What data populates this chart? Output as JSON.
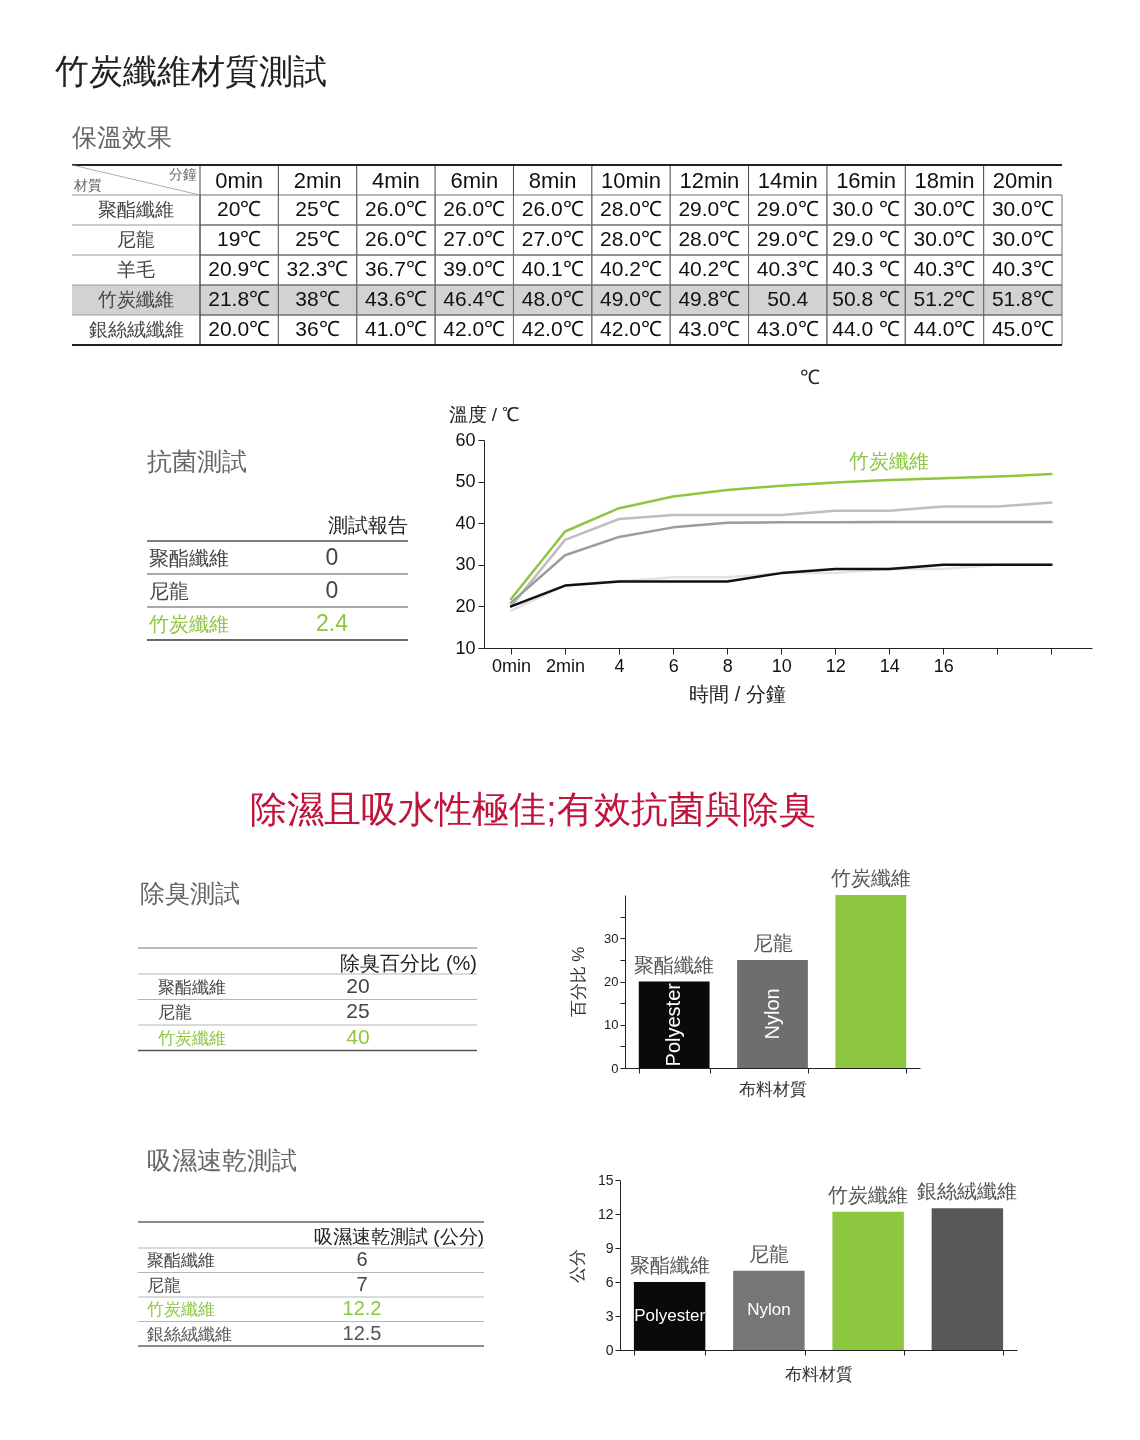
{
  "chart_data": [
    {
      "type": "heatmap",
      "title": "竹炭纖維材質測試",
      "subtitle": "保溫效果",
      "xlabel": "分鐘",
      "ylabel": "材質",
      "categories": [
        "0min",
        "2min",
        "4min",
        "6min",
        "8min",
        "10min",
        "12min",
        "14min",
        "16min",
        "18min",
        "20min"
      ],
      "y_categories": [
        "聚酯纖維",
        "尼龍",
        "羊毛",
        "竹炭纖維",
        "銀絲絨纖維"
      ],
      "cells": [
        [
          20,
          25,
          26,
          26,
          26,
          28,
          29,
          29,
          30,
          30,
          30
        ],
        [
          19,
          25,
          26,
          27,
          27,
          28,
          28,
          29,
          29,
          30,
          30
        ],
        [
          20.9,
          32.3,
          36.7,
          39,
          40.1,
          40.2,
          40.2,
          40.3,
          40.3,
          40.3,
          40.3
        ],
        [
          21.8,
          38,
          43.6,
          46.4,
          48,
          49,
          49.8,
          50.4,
          50.8,
          51.2,
          51.8
        ],
        [
          20,
          36,
          41,
          42,
          42,
          42,
          43,
          43,
          44,
          44,
          45
        ]
      ],
      "cell_labels": [
        [
          "20℃",
          "25℃",
          "26.0℃",
          "26.0℃",
          "26.0℃",
          "28.0℃",
          "29.0℃",
          "29.0℃",
          "30.0 ℃",
          "30.0℃",
          "30.0℃"
        ],
        [
          "19℃",
          "25℃",
          "26.0℃",
          "27.0℃",
          "27.0℃",
          "28.0℃",
          "28.0℃",
          "29.0℃",
          "29.0 ℃",
          "30.0℃",
          "30.0℃"
        ],
        [
          "20.9℃",
          "32.3℃",
          "36.7℃",
          "39.0℃",
          "40.1℃",
          "40.2℃",
          "40.2℃",
          "40.3℃",
          "40.3 ℃",
          "40.3℃",
          "40.3℃"
        ],
        [
          "21.8℃",
          "38℃",
          "43.6℃",
          "46.4℃",
          "48.0℃",
          "49.0℃",
          "49.8℃",
          "50.4",
          "50.8 ℃",
          "51.2℃",
          "51.8℃"
        ],
        [
          "20.0℃",
          "36℃",
          "41.0℃",
          "42.0℃",
          "42.0℃",
          "42.0℃",
          "43.0℃",
          "43.0℃",
          "44.0 ℃",
          "44.0℃",
          "45.0℃"
        ]
      ],
      "bands": [
        {
          "axis": "y",
          "from": "竹炭纖維",
          "to": "竹炭纖維",
          "color": "#d2d2d2"
        }
      ]
    },
    {
      "type": "line",
      "xlabel": "時間 / 分鐘",
      "ylabel": "溫度 / ℃",
      "x": [
        0,
        2,
        4,
        6,
        8,
        10,
        12,
        14,
        16,
        18,
        20
      ],
      "xlim": [
        -1,
        21.5
      ],
      "xticks": [
        {
          "value": 0,
          "label": "0min"
        },
        {
          "value": 2,
          "label": "2min"
        },
        4,
        6,
        8,
        10,
        12,
        14,
        16,
        {
          "value": 18,
          "label": null
        },
        {
          "value": 20,
          "label": null
        }
      ],
      "ylim": [
        10,
        60
      ],
      "yticks": [
        10,
        20,
        30,
        40,
        50,
        60
      ],
      "series": [
        {
          "color": "#e3e3e3",
          "values": [
            19,
            25,
            26,
            27,
            27,
            28,
            28,
            29,
            29,
            30,
            30
          ]
        },
        {
          "color": "#bebebe",
          "values": [
            20,
            36,
            41,
            42,
            42,
            42,
            43,
            43,
            44,
            44,
            45
          ]
        },
        {
          "color": "#9c9c9c",
          "values": [
            20.9,
            32.3,
            36.7,
            39,
            40.1,
            40.2,
            40.2,
            40.3,
            40.3,
            40.3,
            40.3
          ]
        },
        {
          "color": "#111111",
          "values": [
            20,
            25,
            26,
            26,
            26,
            28,
            29,
            29,
            30,
            30,
            30
          ]
        },
        {
          "name": "竹炭纖維",
          "color": "#8dc63f",
          "values": [
            21.8,
            38,
            43.6,
            46.4,
            48,
            49,
            49.8,
            50.4,
            50.8,
            51.2,
            51.8
          ]
        }
      ],
      "annotations": [
        "℃"
      ]
    },
    {
      "type": "other",
      "title": "抗菌測試",
      "categories": [
        "聚酯纖維",
        "尼龍",
        "竹炭纖維"
      ],
      "colors": [
        "#444444",
        "#444444",
        "#8dc63f"
      ],
      "series": [
        {
          "name": "測試報告",
          "values": [
            0,
            0,
            2.4
          ]
        }
      ],
      "data_labels": true
    },
    {
      "type": "other",
      "title": "除濕且吸水性極佳;有效抗菌與除臭",
      "subtitle": "除臭測試",
      "categories": [
        "聚酯纖維",
        "尼龍",
        "竹炭纖維"
      ],
      "colors": [
        "#444444",
        "#444444",
        "#8dc63f"
      ],
      "series": [
        {
          "name": "除臭百分比 (%)",
          "values": [
            20,
            25,
            40
          ]
        }
      ],
      "data_labels": true
    },
    {
      "type": "bar",
      "xlabel": "布料材質",
      "ylabel": "百分比 %",
      "categories": [
        "聚酯纖維",
        "尼龍",
        "竹炭纖維"
      ],
      "values": [
        20,
        25,
        40
      ],
      "colors": [
        "#0a0a0a",
        "#6e6e6e",
        "#8dc63f"
      ],
      "ylim": [
        0,
        40
      ],
      "yticks": [
        0,
        {
          "value": 5,
          "label": null
        },
        10,
        {
          "value": 15,
          "label": null
        },
        20,
        {
          "value": 25,
          "label": null
        },
        30,
        {
          "value": 35,
          "label": null
        }
      ],
      "annotations": [
        "Polyester",
        "Nylon"
      ]
    },
    {
      "type": "other",
      "title": "吸濕速乾測試",
      "categories": [
        "聚酯纖維",
        "尼龍",
        "竹炭纖維",
        "銀絲絨纖維"
      ],
      "colors": [
        "#444444",
        "#444444",
        "#8dc63f",
        "#555555"
      ],
      "series": [
        {
          "name": "吸濕速乾測試 (公分)",
          "values": [
            6,
            7,
            12.2,
            12.5
          ]
        }
      ],
      "data_labels": true
    },
    {
      "type": "bar",
      "xlabel": "布料材質",
      "ylabel": "公分",
      "categories": [
        "聚酯纖維",
        "尼龍",
        "竹炭纖維",
        "銀絲絨纖維"
      ],
      "values": [
        6,
        7,
        12.2,
        12.5
      ],
      "colors": [
        "#0a0a0a",
        "#767676",
        "#8dc63f",
        "#585858"
      ],
      "ylim": [
        0,
        15
      ],
      "yticks": [
        0,
        3,
        6,
        9,
        12,
        15
      ],
      "annotations": [
        "Polyester",
        "Nylon"
      ]
    }
  ]
}
